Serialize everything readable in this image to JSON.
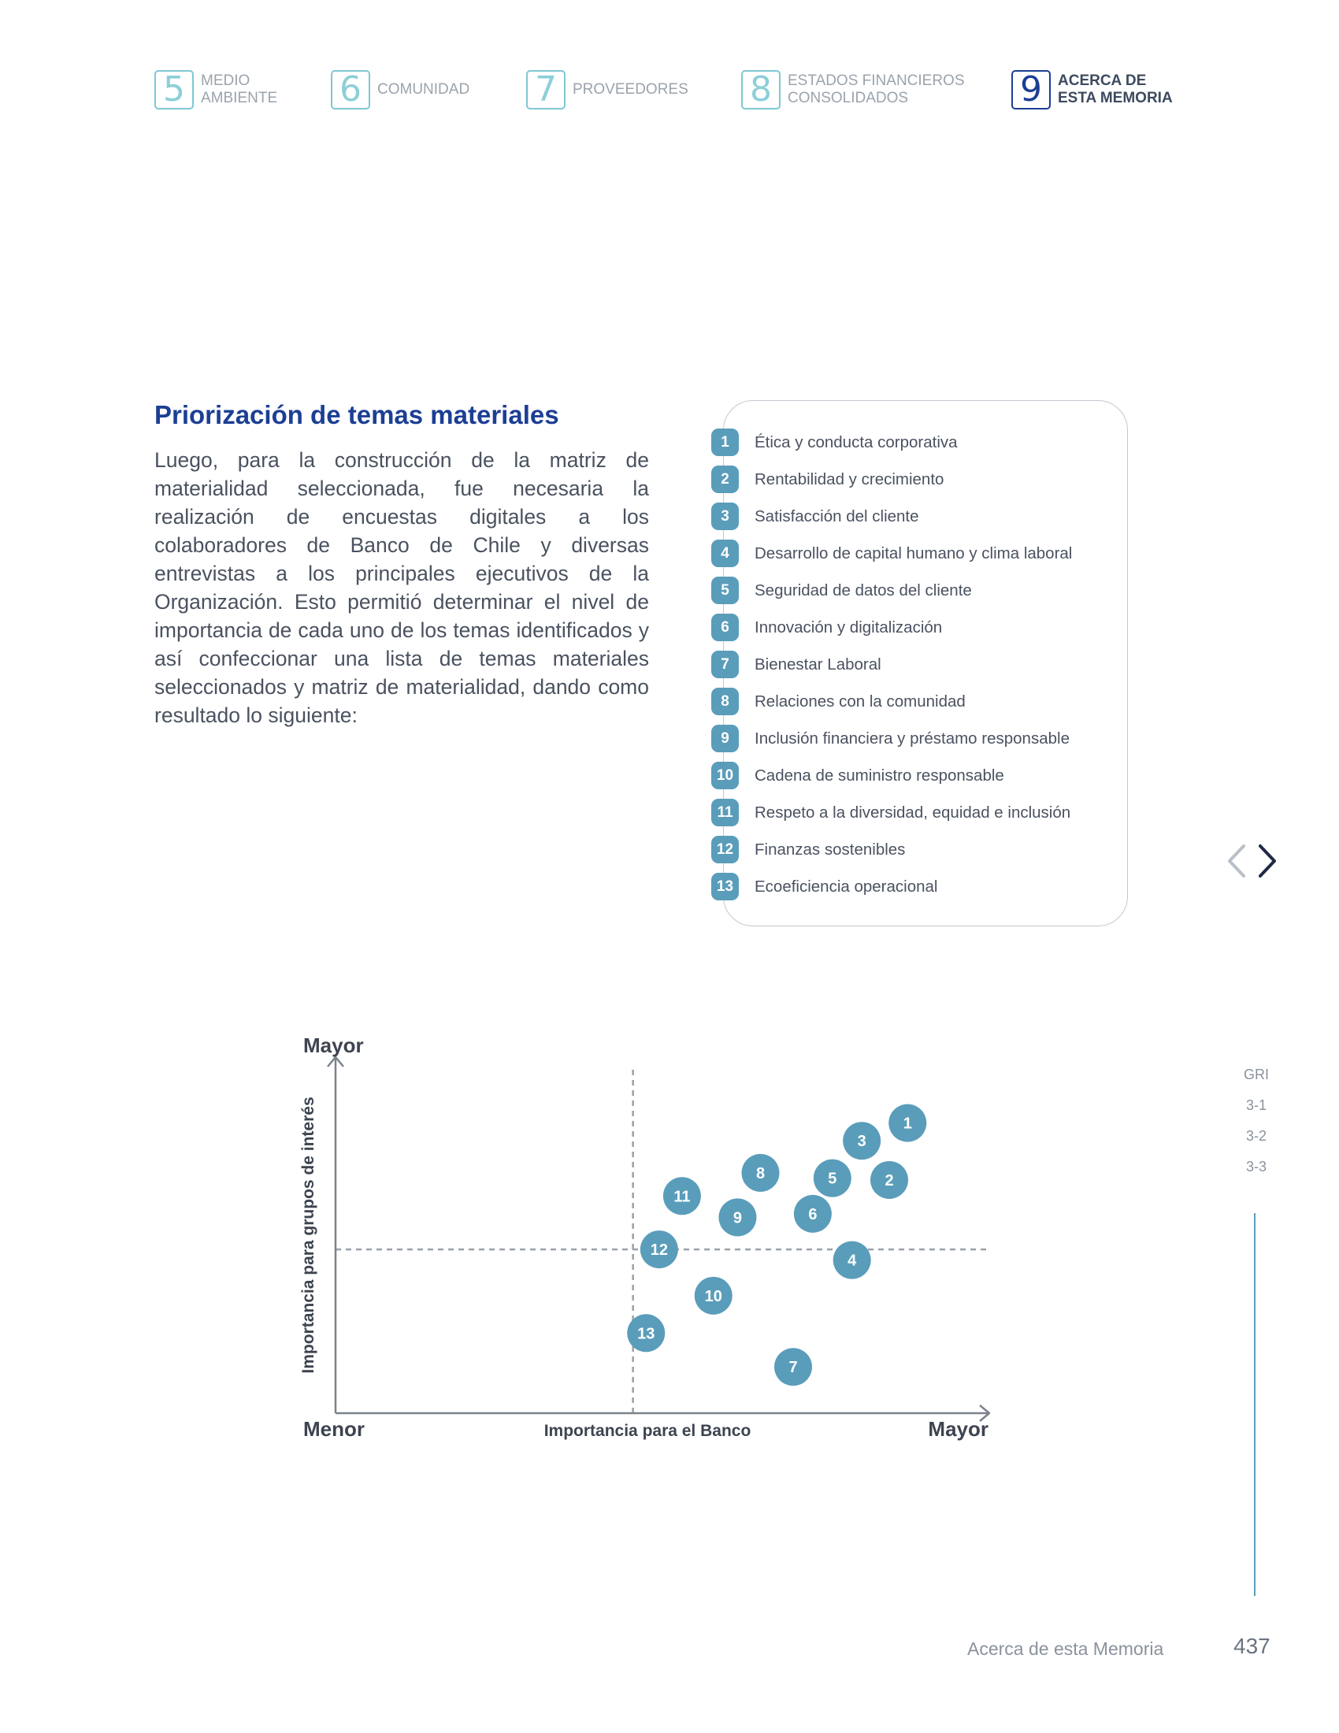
{
  "nav": {
    "chapters": [
      {
        "num": "5",
        "label": "MEDIO\nAMBIENTE"
      },
      {
        "num": "6",
        "label": "COMUNIDAD"
      },
      {
        "num": "7",
        "label": "PROVEEDORES"
      },
      {
        "num": "8",
        "label": "ESTADOS FINANCIEROS\nCONSOLIDADOS"
      },
      {
        "num": "9",
        "label": "ACERCA DE\nESTA MEMORIA"
      }
    ]
  },
  "section": {
    "title": "Priorización de temas materiales",
    "body": "Luego, para la construcción de la matriz de materialidad seleccionada, fue necesaria la realización de encuestas digitales a los colaboradores de Banco de Chile y diversas entrevistas a los principales ejecutivos de la Organización. Esto permitió determinar el nivel de importancia de cada uno de los temas identificados y así confeccionar una lista de temas materiales seleccionados y matriz de materialidad, dando como resultado lo siguiente:"
  },
  "topics": [
    {
      "num": "1",
      "label": "Ética y conducta corporativa"
    },
    {
      "num": "2",
      "label": "Rentabilidad y crecimiento"
    },
    {
      "num": "3",
      "label": "Satisfacción del cliente"
    },
    {
      "num": "4",
      "label": "Desarrollo de capital humano y clima laboral"
    },
    {
      "num": "5",
      "label": "Seguridad de datos del cliente"
    },
    {
      "num": "6",
      "label": "Innovación y digitalización"
    },
    {
      "num": "7",
      "label": "Bienestar Laboral"
    },
    {
      "num": "8",
      "label": "Relaciones con la comunidad"
    },
    {
      "num": "9",
      "label": "Inclusión financiera y préstamo responsable"
    },
    {
      "num": "10",
      "label": "Cadena de suministro responsable"
    },
    {
      "num": "11",
      "label": "Respeto a la diversidad, equidad e inclusión"
    },
    {
      "num": "12",
      "label": "Finanzas sostenibles"
    },
    {
      "num": "13",
      "label": "Ecoeficiencia operacional"
    }
  ],
  "gri": {
    "title": "GRI",
    "items": [
      "3-1",
      "3-2",
      "3-3"
    ]
  },
  "chart_data": {
    "type": "scatter",
    "xlabel": "Importancia para el Banco",
    "ylabel": "Importancia para grupos de interés",
    "x_low_label": "Menor",
    "x_high_label": "Mayor",
    "y_high_label": "Mayor",
    "xlim": [
      0,
      100
    ],
    "ylim": [
      0,
      100
    ],
    "x_threshold": 45.5,
    "y_threshold": 46,
    "points": [
      {
        "label": "1",
        "x": 87.5,
        "y": 81.5
      },
      {
        "label": "2",
        "x": 84.7,
        "y": 65.5
      },
      {
        "label": "3",
        "x": 80.5,
        "y": 76.5
      },
      {
        "label": "4",
        "x": 79,
        "y": 43
      },
      {
        "label": "5",
        "x": 76,
        "y": 66
      },
      {
        "label": "6",
        "x": 73,
        "y": 56
      },
      {
        "label": "7",
        "x": 70,
        "y": 13
      },
      {
        "label": "8",
        "x": 65,
        "y": 67.5
      },
      {
        "label": "9",
        "x": 61.5,
        "y": 55
      },
      {
        "label": "10",
        "x": 57.8,
        "y": 33
      },
      {
        "label": "11",
        "x": 53,
        "y": 61
      },
      {
        "label": "12",
        "x": 49.5,
        "y": 46
      },
      {
        "label": "13",
        "x": 47.5,
        "y": 22.5
      }
    ],
    "color": "#5a9dba"
  },
  "footer": {
    "section": "Acerca de esta Memoria",
    "page": "437"
  }
}
